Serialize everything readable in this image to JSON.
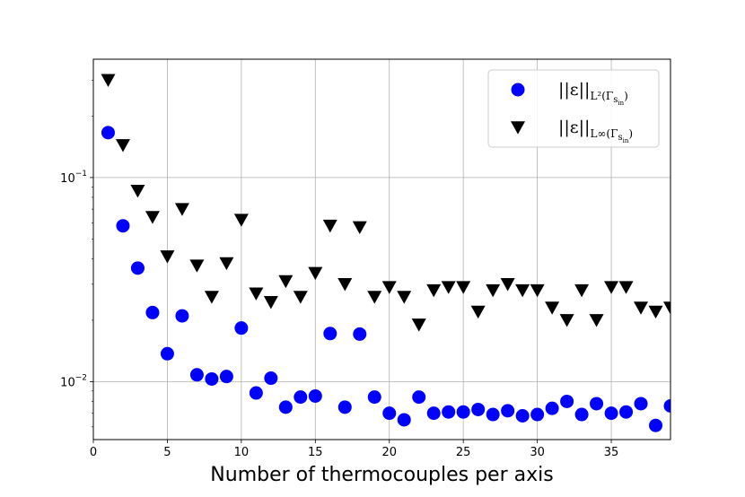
{
  "chart_data": {
    "type": "scatter",
    "title": "",
    "xlabel": "Number of thermocouples per axis",
    "ylabel": "",
    "yscale": "log",
    "xlim": [
      0,
      39
    ],
    "ylim": [
      0.0052,
      0.38
    ],
    "grid": true,
    "legend_position": "top-right",
    "xticks": [
      0,
      5,
      10,
      15,
      20,
      25,
      30,
      35
    ],
    "xtick_labels": [
      "0",
      "5",
      "10",
      "15",
      "20",
      "25",
      "30",
      "35"
    ],
    "yticks": [
      0.01,
      0.1
    ],
    "ytick_labels": [
      {
        "base": "10",
        "exp": "−2"
      },
      {
        "base": "10",
        "exp": "−1"
      }
    ],
    "x": [
      1,
      2,
      3,
      4,
      5,
      6,
      7,
      8,
      9,
      10,
      11,
      12,
      13,
      14,
      15,
      16,
      17,
      18,
      19,
      20,
      21,
      22,
      23,
      24,
      25,
      26,
      27,
      28,
      29,
      30,
      31,
      32,
      33,
      34,
      35,
      36,
      37,
      38,
      39
    ],
    "series": [
      {
        "name": "||ε||L²(Γs_in)",
        "legend": {
          "main": "||ε||",
          "sub": "L²(Γ",
          "subsub": "s",
          "subsub2": "in",
          "close": ")"
        },
        "marker": "circle",
        "color": "#0000ff",
        "values": [
          0.166,
          0.058,
          0.036,
          0.0218,
          0.0137,
          0.021,
          0.0108,
          0.0103,
          0.0106,
          0.0183,
          0.0088,
          0.0104,
          0.0075,
          0.0084,
          0.0085,
          0.0172,
          0.0075,
          0.0171,
          0.0084,
          0.007,
          0.0065,
          0.0084,
          0.007,
          0.0071,
          0.0071,
          0.0073,
          0.0069,
          0.0072,
          0.0068,
          0.0069,
          0.0074,
          0.008,
          0.0069,
          0.0078,
          0.007,
          0.0071,
          0.0078,
          0.0061,
          0.0076
        ]
      },
      {
        "name": "||ε||L∞(Γs_in)",
        "legend": {
          "main": "||ε||",
          "sub": "L∞(Γ",
          "subsub": "s",
          "subsub2": "in",
          "close": ")"
        },
        "marker": "triangle-down",
        "color": "#000000",
        "values": [
          0.3,
          0.144,
          0.086,
          0.064,
          0.041,
          0.07,
          0.037,
          0.026,
          0.038,
          0.062,
          0.027,
          0.0245,
          0.031,
          0.026,
          0.034,
          0.058,
          0.03,
          0.057,
          0.026,
          0.029,
          0.026,
          0.019,
          0.028,
          0.029,
          0.029,
          0.022,
          0.028,
          0.03,
          0.028,
          0.028,
          0.023,
          0.02,
          0.028,
          0.02,
          0.029,
          0.029,
          0.023,
          0.022,
          0.023
        ]
      }
    ]
  }
}
